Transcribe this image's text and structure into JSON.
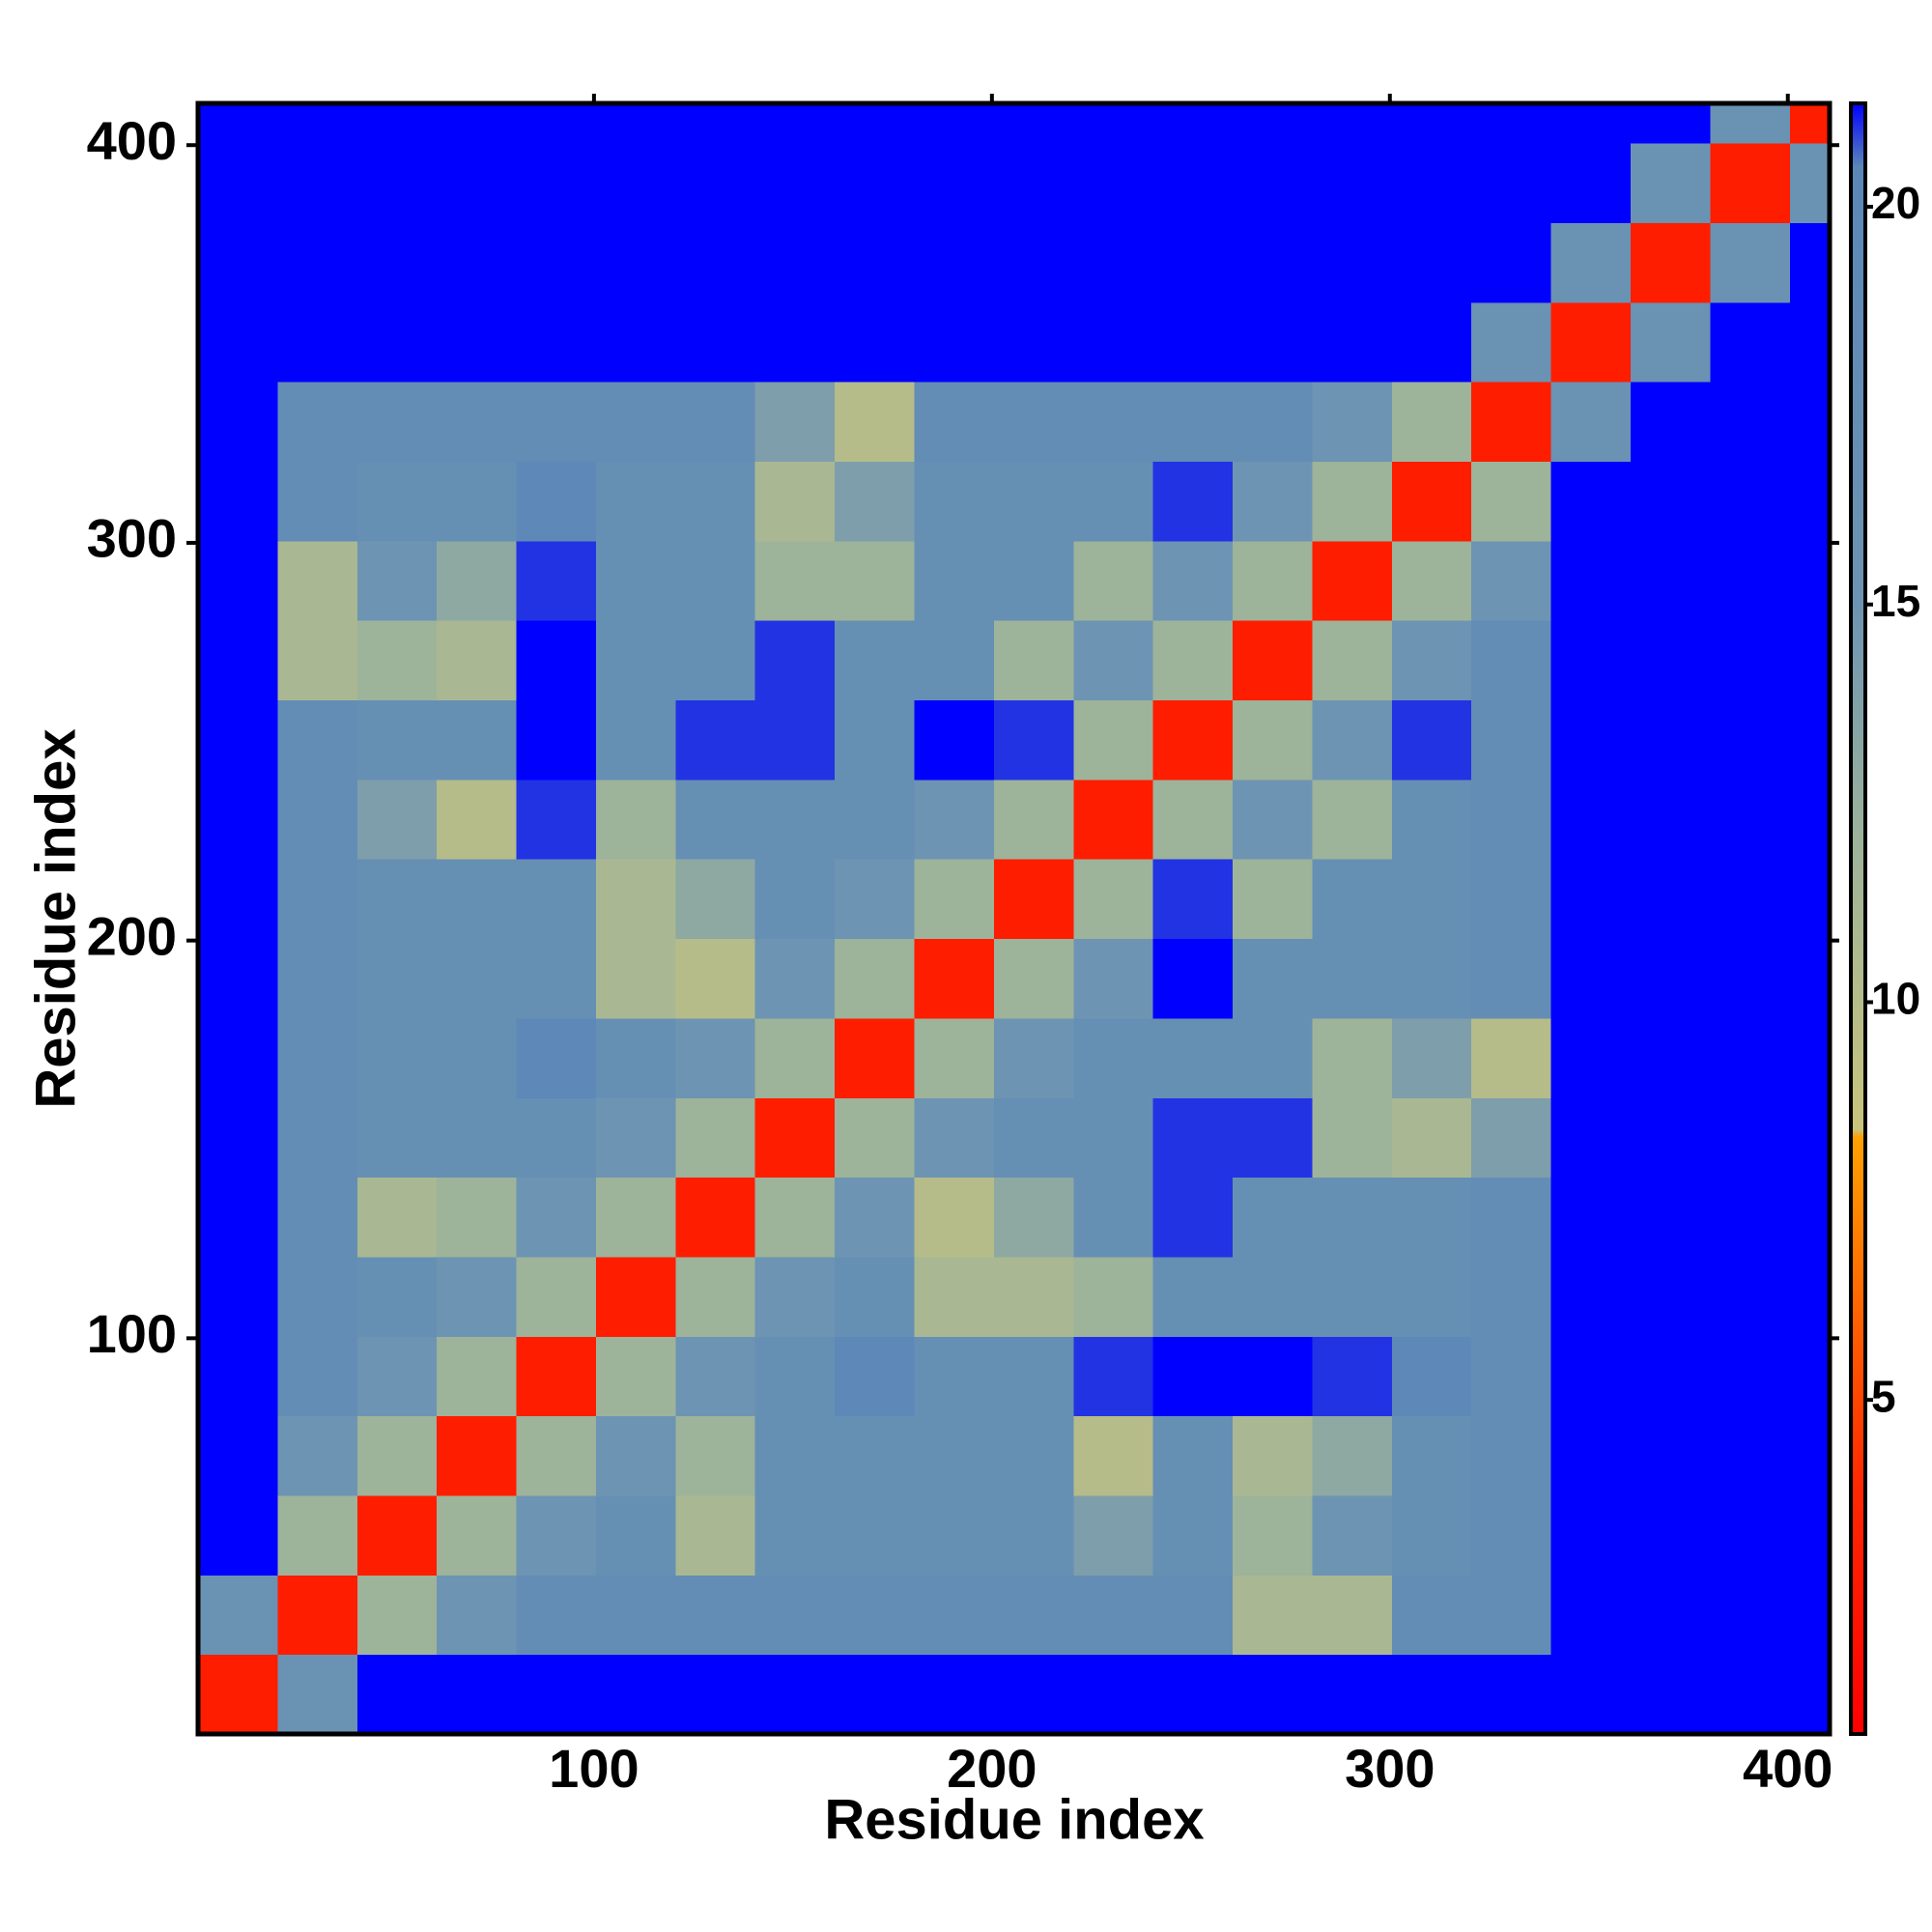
{
  "chart_data": {
    "type": "heatmap",
    "xlabel": "Residue index",
    "ylabel": "Residue index",
    "xlim": [
      0.5,
      410.5
    ],
    "ylim": [
      0.5,
      410.5
    ],
    "xticks": [
      100,
      200,
      300,
      400
    ],
    "yticks": [
      100,
      200,
      300,
      400
    ],
    "zlim": [
      0.8,
      21.3
    ],
    "zticks": [
      5,
      10,
      15,
      20
    ],
    "colorscale": [
      {
        "value": 0.8,
        "color": "#ff0000"
      },
      {
        "value": 4,
        "color": "#ff2a00"
      },
      {
        "value": 8.3,
        "color": "#ffa000"
      },
      {
        "value": 8.4,
        "color": "#c9c47c"
      },
      {
        "value": 12,
        "color": "#9db39a"
      },
      {
        "value": 15,
        "color": "#6d94b2"
      },
      {
        "value": 20.5,
        "color": "#5b87b8"
      },
      {
        "value": 21.3,
        "color": "#0000ff"
      }
    ],
    "bins": [
      0.5,
      20.5,
      40.5,
      60.5,
      80.5,
      100.5,
      120.5,
      140.5,
      160.5,
      180.5,
      200.5,
      220.5,
      240.5,
      260.5,
      280.5,
      300.5,
      320.5,
      340.5,
      360.5,
      380.5,
      400.5,
      410.5
    ],
    "z": [
      [
        3,
        16,
        22,
        22,
        22,
        22,
        22,
        22,
        22,
        22,
        22,
        22,
        22,
        22,
        22,
        22,
        22,
        22,
        22,
        22,
        22
      ],
      [
        16,
        3,
        12,
        15,
        18,
        18,
        18,
        18,
        18,
        18,
        18,
        18,
        18,
        11,
        11,
        18,
        18,
        22,
        22,
        22,
        22
      ],
      [
        22,
        12,
        3,
        12,
        15,
        17,
        11,
        17,
        17,
        17,
        17,
        14,
        17,
        12,
        15,
        17,
        18,
        22,
        22,
        22,
        22
      ],
      [
        22,
        15,
        12,
        3,
        12,
        15,
        12,
        17,
        17,
        17,
        17,
        10,
        17,
        11,
        13,
        17,
        18,
        22,
        22,
        22,
        22
      ],
      [
        22,
        18,
        15,
        12,
        3,
        12,
        15,
        17,
        20,
        17,
        17,
        21,
        22,
        22,
        21,
        20,
        18,
        22,
        22,
        22,
        22
      ],
      [
        22,
        18,
        17,
        15,
        12,
        3,
        12,
        15,
        17,
        11,
        11,
        12,
        17,
        17,
        17,
        17,
        18,
        22,
        22,
        22,
        22
      ],
      [
        22,
        18,
        11,
        12,
        15,
        12,
        3,
        12,
        15,
        10,
        13,
        17,
        21,
        17,
        17,
        17,
        18,
        22,
        22,
        22,
        22
      ],
      [
        22,
        18,
        17,
        17,
        17,
        15,
        12,
        3,
        12,
        15,
        17,
        17,
        21,
        21,
        12,
        11,
        14,
        22,
        22,
        22,
        22
      ],
      [
        22,
        18,
        17,
        17,
        20,
        17,
        15,
        12,
        3,
        12,
        15,
        17,
        17,
        17,
        12,
        14,
        10,
        22,
        22,
        22,
        22
      ],
      [
        22,
        18,
        17,
        17,
        17,
        11,
        10,
        15,
        12,
        3,
        12,
        15,
        22,
        17,
        17,
        17,
        18,
        22,
        22,
        22,
        22
      ],
      [
        22,
        18,
        17,
        17,
        17,
        11,
        13,
        17,
        15,
        12,
        3,
        12,
        21,
        12,
        17,
        17,
        18,
        22,
        22,
        22,
        22
      ],
      [
        22,
        18,
        14,
        10,
        21,
        12,
        17,
        17,
        17,
        15,
        12,
        3,
        12,
        15,
        12,
        17,
        18,
        22,
        22,
        22,
        22
      ],
      [
        22,
        18,
        17,
        17,
        22,
        17,
        21,
        21,
        17,
        22,
        21,
        12,
        3,
        12,
        15,
        21,
        18,
        22,
        22,
        22,
        22
      ],
      [
        22,
        11,
        12,
        11,
        22,
        17,
        17,
        21,
        17,
        17,
        12,
        15,
        12,
        3,
        12,
        15,
        18,
        22,
        22,
        22,
        22
      ],
      [
        22,
        11,
        15,
        13,
        21,
        17,
        17,
        12,
        12,
        17,
        17,
        12,
        15,
        12,
        3,
        12,
        15,
        22,
        22,
        22,
        22
      ],
      [
        22,
        18,
        17,
        17,
        20,
        17,
        17,
        11,
        14,
        17,
        17,
        17,
        21,
        15,
        12,
        3,
        12,
        22,
        22,
        22,
        22
      ],
      [
        22,
        18,
        18,
        18,
        18,
        18,
        18,
        14,
        10,
        18,
        18,
        18,
        18,
        18,
        15,
        12,
        3,
        16,
        22,
        22,
        22
      ],
      [
        22,
        22,
        22,
        22,
        22,
        22,
        22,
        22,
        22,
        22,
        22,
        22,
        22,
        22,
        22,
        22,
        16,
        3,
        16,
        22,
        22
      ],
      [
        22,
        22,
        22,
        22,
        22,
        22,
        22,
        22,
        22,
        22,
        22,
        22,
        22,
        22,
        22,
        22,
        22,
        16,
        3,
        16,
        22
      ],
      [
        22,
        22,
        22,
        22,
        22,
        22,
        22,
        22,
        22,
        22,
        22,
        22,
        22,
        22,
        22,
        22,
        22,
        22,
        16,
        3,
        16
      ],
      [
        22,
        22,
        22,
        22,
        22,
        22,
        22,
        22,
        22,
        22,
        22,
        22,
        22,
        22,
        22,
        22,
        22,
        22,
        22,
        16,
        3
      ]
    ]
  }
}
